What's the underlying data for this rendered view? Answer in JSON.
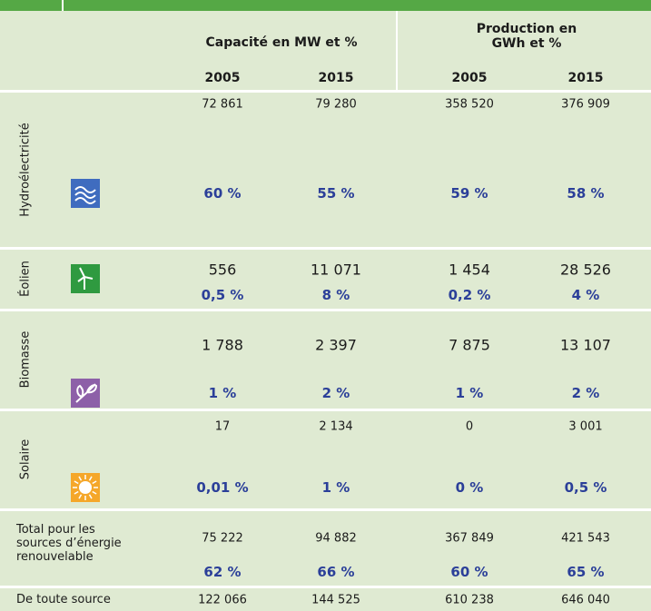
{
  "header": {
    "group1": "Capacité en MW et %",
    "group2": "Production en GWh et %",
    "years": [
      "2005",
      "2015",
      "2005",
      "2015"
    ]
  },
  "rows": [
    {
      "label": "Hydroélectricité",
      "values": [
        "72 861",
        "79 280",
        "358 520",
        "376 909"
      ],
      "percents": [
        "60 %",
        "55 %",
        "59 %",
        "58 %"
      ]
    },
    {
      "label": "Éolien",
      "values": [
        "556",
        "11 071",
        "1 454",
        "28 526"
      ],
      "percents": [
        "0,5 %",
        "8 %",
        "0,2 %",
        "4 %"
      ]
    },
    {
      "label": "Biomasse",
      "values": [
        "1 788",
        "2 397",
        "7 875",
        "13 107"
      ],
      "percents": [
        "1 %",
        "2 %",
        "1 %",
        "2 %"
      ]
    },
    {
      "label": "Solaire",
      "values": [
        "17",
        "2 134",
        "0",
        "3 001"
      ],
      "percents": [
        "0,01 %",
        "1 %",
        "0 %",
        "0,5 %"
      ]
    },
    {
      "label": "Total pour les sources d’énergie renouvelable",
      "values": [
        "75 222",
        "94 882",
        "367 849",
        "421 543"
      ],
      "percents": [
        "62 %",
        "66 %",
        "60 %",
        "65 %"
      ]
    },
    {
      "label": "De toute source",
      "values": [
        "122 066",
        "144 525",
        "610 238",
        "646 040"
      ]
    }
  ]
}
